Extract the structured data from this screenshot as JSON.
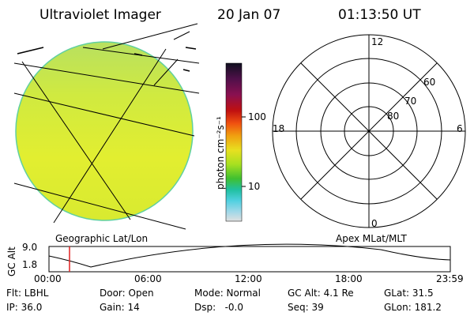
{
  "header": {
    "title": "Ultraviolet Imager",
    "date": "20 Jan 07",
    "time": "01:13:50 UT"
  },
  "colorbar": {
    "unit_label": "photon cm⁻²s⁻¹",
    "ticks": [
      "100",
      "10"
    ],
    "colors": [
      "#101020",
      "#50104a",
      "#8a1050",
      "#c01010",
      "#f05010",
      "#f0a010",
      "#e8e020",
      "#a8e020",
      "#40c030",
      "#20c0a0",
      "#50d0e0",
      "#a0d8e8",
      "#e0e0e0"
    ]
  },
  "left_panel": {
    "caption": "Geographic Lat/Lon"
  },
  "right_panel": {
    "caption": "Apex MLat/MLT",
    "mlt_labels": {
      "top": "12",
      "right": "6",
      "bottom": "0",
      "left": "18"
    },
    "lat_labels": [
      "60",
      "70",
      "80"
    ]
  },
  "altitude_plot": {
    "ylabel": "GC Alt",
    "y_ticks": [
      "9.0",
      "1.8"
    ],
    "x_ticks": [
      "00:00",
      "06:00",
      "12:00",
      "18:00",
      "23:59"
    ]
  },
  "info": {
    "flt": "Flt: LBHL",
    "door": "Door: Open",
    "mode": "Mode: Normal",
    "gc_alt": "GC Alt: 4.1 Re",
    "glat": "GLat: 31.5",
    "ip": "IP: 36.0",
    "gain": "Gain: 14",
    "dsp": "Dsp:   -0.0",
    "seq": "Seq: 39",
    "glon": "GLon: 181.2"
  }
}
